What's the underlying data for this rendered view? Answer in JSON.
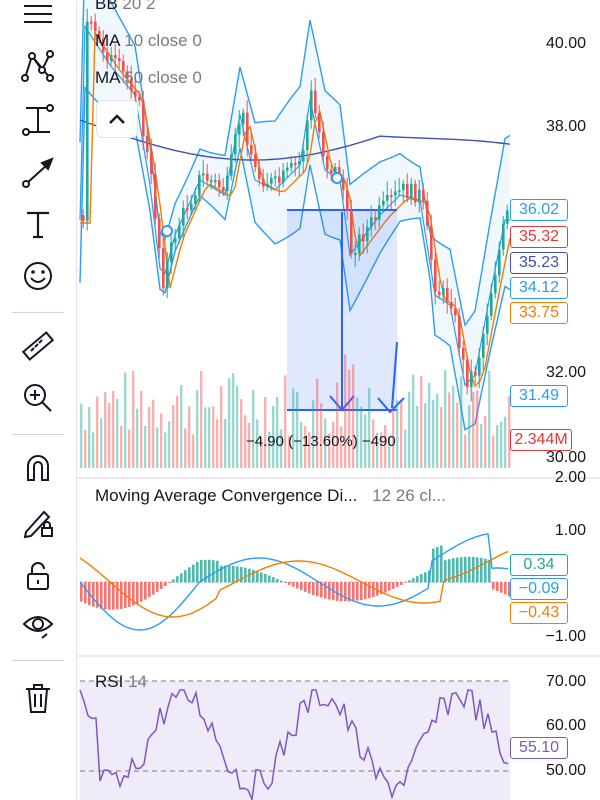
{
  "toolbar": {
    "items": [
      {
        "name": "trend-lines-icon"
      },
      {
        "name": "pattern-icon"
      },
      {
        "name": "measure-line-icon"
      },
      {
        "name": "arrow-icon"
      },
      {
        "name": "text-icon"
      },
      {
        "name": "emoji-icon"
      },
      {
        "name": "ruler-icon"
      },
      {
        "name": "zoom-in-icon"
      },
      {
        "name": "magnet-icon"
      },
      {
        "name": "lock-pencil-icon"
      },
      {
        "name": "unlock-icon"
      },
      {
        "name": "eye-icon"
      },
      {
        "name": "trash-icon"
      }
    ]
  },
  "main_pane": {
    "indicators": [
      {
        "name": "BB",
        "params": "20 2"
      },
      {
        "name": "MA",
        "params": "10 close 0"
      },
      {
        "name": "MA",
        "params": "50 close 0"
      }
    ],
    "price_axis": [
      "40.00",
      "38.00",
      "32.00",
      "30.00"
    ],
    "price_badges": [
      {
        "value": "36.02",
        "color": "#2a9df4"
      },
      {
        "value": "35.32",
        "color": "#e53935"
      },
      {
        "value": "35.23",
        "color": "#3f51b5"
      },
      {
        "value": "34.12",
        "color": "#2a9df4"
      },
      {
        "value": "33.75",
        "color": "#f57c00"
      },
      {
        "value": "31.49",
        "color": "#2a9df4"
      },
      {
        "value": "2.344M",
        "color": "#e53935"
      }
    ],
    "measure_label": "−4.90 (−13.60%) −490"
  },
  "macd_pane": {
    "title": "Moving Average Convergence Di...",
    "params": "12 26 cl...",
    "axis": [
      "2.00",
      "1.00",
      "−1.00"
    ],
    "badges": [
      {
        "value": "0.34",
        "color": "#26a69a"
      },
      {
        "value": "−0.09",
        "color": "#2a9df4"
      },
      {
        "value": "−0.43",
        "color": "#f57c00"
      }
    ]
  },
  "rsi_pane": {
    "title": "RSI",
    "period": "14",
    "axis": [
      "70.00",
      "60.00",
      "50.00"
    ],
    "badges": [
      {
        "value": "55.10",
        "color": "#7e57c2"
      }
    ]
  },
  "colors": {
    "up": "#26a69a",
    "down": "#ef5350",
    "bb": "#2a9df4",
    "ma10": "#f57c00",
    "ma50": "#3f51b5",
    "rsi": "#7e57c2",
    "measure": "#2962ff"
  }
}
